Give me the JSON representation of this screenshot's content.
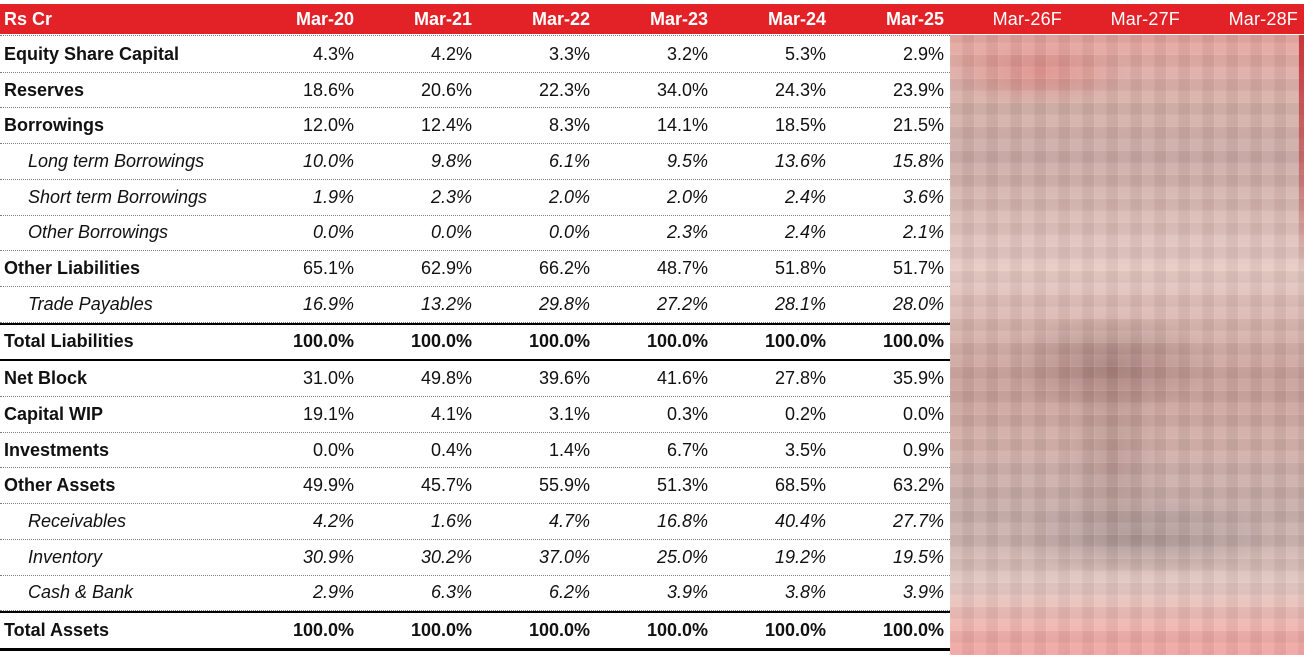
{
  "table": {
    "title_label": "Rs Cr",
    "columns": [
      {
        "label": "Mar-20",
        "forecast": false
      },
      {
        "label": "Mar-21",
        "forecast": false
      },
      {
        "label": "Mar-22",
        "forecast": false
      },
      {
        "label": "Mar-23",
        "forecast": false
      },
      {
        "label": "Mar-24",
        "forecast": false
      },
      {
        "label": "Mar-25",
        "forecast": false
      },
      {
        "label": "Mar-26F",
        "forecast": true
      },
      {
        "label": "Mar-27F",
        "forecast": true
      },
      {
        "label": "Mar-28F",
        "forecast": true
      }
    ],
    "rows": [
      {
        "label": "Equity Share Capital",
        "style": "main",
        "values": [
          "4.3%",
          "4.2%",
          "3.3%",
          "3.2%",
          "5.3%",
          "2.9%"
        ]
      },
      {
        "label": "Reserves",
        "style": "main",
        "values": [
          "18.6%",
          "20.6%",
          "22.3%",
          "34.0%",
          "24.3%",
          "23.9%"
        ]
      },
      {
        "label": "Borrowings",
        "style": "main",
        "values": [
          "12.0%",
          "12.4%",
          "8.3%",
          "14.1%",
          "18.5%",
          "21.5%"
        ]
      },
      {
        "label": "Long term Borrowings",
        "style": "sub",
        "values": [
          "10.0%",
          "9.8%",
          "6.1%",
          "9.5%",
          "13.6%",
          "15.8%"
        ]
      },
      {
        "label": "Short term Borrowings",
        "style": "sub",
        "values": [
          "1.9%",
          "2.3%",
          "2.0%",
          "2.0%",
          "2.4%",
          "3.6%"
        ]
      },
      {
        "label": "Other Borrowings",
        "style": "sub",
        "values": [
          "0.0%",
          "0.0%",
          "0.0%",
          "2.3%",
          "2.4%",
          "2.1%"
        ]
      },
      {
        "label": "Other Liabilities",
        "style": "main",
        "values": [
          "65.1%",
          "62.9%",
          "66.2%",
          "48.7%",
          "51.8%",
          "51.7%"
        ]
      },
      {
        "label": "Trade Payables",
        "style": "sub",
        "values": [
          "16.9%",
          "13.2%",
          "29.8%",
          "27.2%",
          "28.1%",
          "28.0%"
        ]
      },
      {
        "label": "Total Liabilities",
        "style": "total",
        "values": [
          "100.0%",
          "100.0%",
          "100.0%",
          "100.0%",
          "100.0%",
          "100.0%"
        ]
      },
      {
        "label": "Net Block",
        "style": "main",
        "values": [
          "31.0%",
          "49.8%",
          "39.6%",
          "41.6%",
          "27.8%",
          "35.9%"
        ]
      },
      {
        "label": "Capital WIP",
        "style": "main",
        "values": [
          "19.1%",
          "4.1%",
          "3.1%",
          "0.3%",
          "0.2%",
          "0.0%"
        ]
      },
      {
        "label": "Investments",
        "style": "main",
        "values": [
          "0.0%",
          "0.4%",
          "1.4%",
          "6.7%",
          "3.5%",
          "0.9%"
        ]
      },
      {
        "label": "Other Assets",
        "style": "main",
        "values": [
          "49.9%",
          "45.7%",
          "55.9%",
          "51.3%",
          "68.5%",
          "63.2%"
        ]
      },
      {
        "label": "Receivables",
        "style": "sub",
        "values": [
          "4.2%",
          "1.6%",
          "4.7%",
          "16.8%",
          "40.4%",
          "27.7%"
        ]
      },
      {
        "label": "Inventory",
        "style": "sub",
        "values": [
          "30.9%",
          "30.2%",
          "37.0%",
          "25.0%",
          "19.2%",
          "19.5%"
        ]
      },
      {
        "label": "Cash & Bank",
        "style": "sub",
        "values": [
          "2.9%",
          "6.3%",
          "6.2%",
          "3.9%",
          "3.8%",
          "3.9%"
        ]
      },
      {
        "label": "Total Assets",
        "style": "total",
        "values": [
          "100.0%",
          "100.0%",
          "100.0%",
          "100.0%",
          "100.0%",
          "100.0%"
        ]
      }
    ]
  },
  "colors": {
    "header_bg": "#e32228",
    "header_text": "#ffffff",
    "body_text": "#111111",
    "redaction_tint": "#d9b3ac"
  }
}
